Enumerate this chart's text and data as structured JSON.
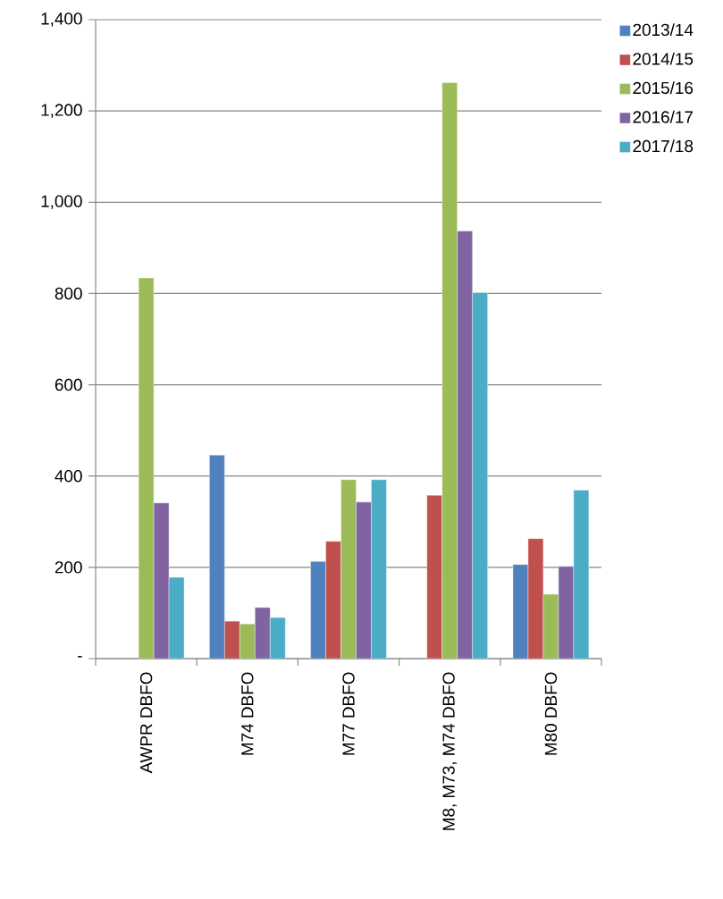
{
  "chart_data": {
    "type": "bar",
    "categories": [
      "AWPR DBFO",
      "M74 DBFO",
      "M77 DBFO",
      "M8, M73, M74 DBFO",
      "M80 DBFO"
    ],
    "series": [
      {
        "name": "2013/14",
        "color": "#4f81bd",
        "values": [
          null,
          446,
          213,
          null,
          206
        ]
      },
      {
        "name": "2014/15",
        "color": "#c0504d",
        "values": [
          null,
          82,
          257,
          358,
          263
        ]
      },
      {
        "name": "2015/16",
        "color": "#9bbb59",
        "values": [
          834,
          76,
          392,
          1262,
          141
        ]
      },
      {
        "name": "2016/17",
        "color": "#8064a2",
        "values": [
          341,
          112,
          343,
          937,
          202
        ]
      },
      {
        "name": "2017/18",
        "color": "#4bacc6",
        "values": [
          178,
          90,
          392,
          802,
          369
        ]
      }
    ],
    "ylim": [
      0,
      1400
    ],
    "yticks": [
      {
        "value": 0,
        "label": "-"
      },
      {
        "value": 200,
        "label": "200"
      },
      {
        "value": 400,
        "label": "400"
      },
      {
        "value": 600,
        "label": "600"
      },
      {
        "value": 800,
        "label": "800"
      },
      {
        "value": 1000,
        "label": "1,000"
      },
      {
        "value": 1200,
        "label": "1,200"
      },
      {
        "value": 1400,
        "label": "1,400"
      }
    ],
    "grid": "y",
    "legend": "top right"
  }
}
